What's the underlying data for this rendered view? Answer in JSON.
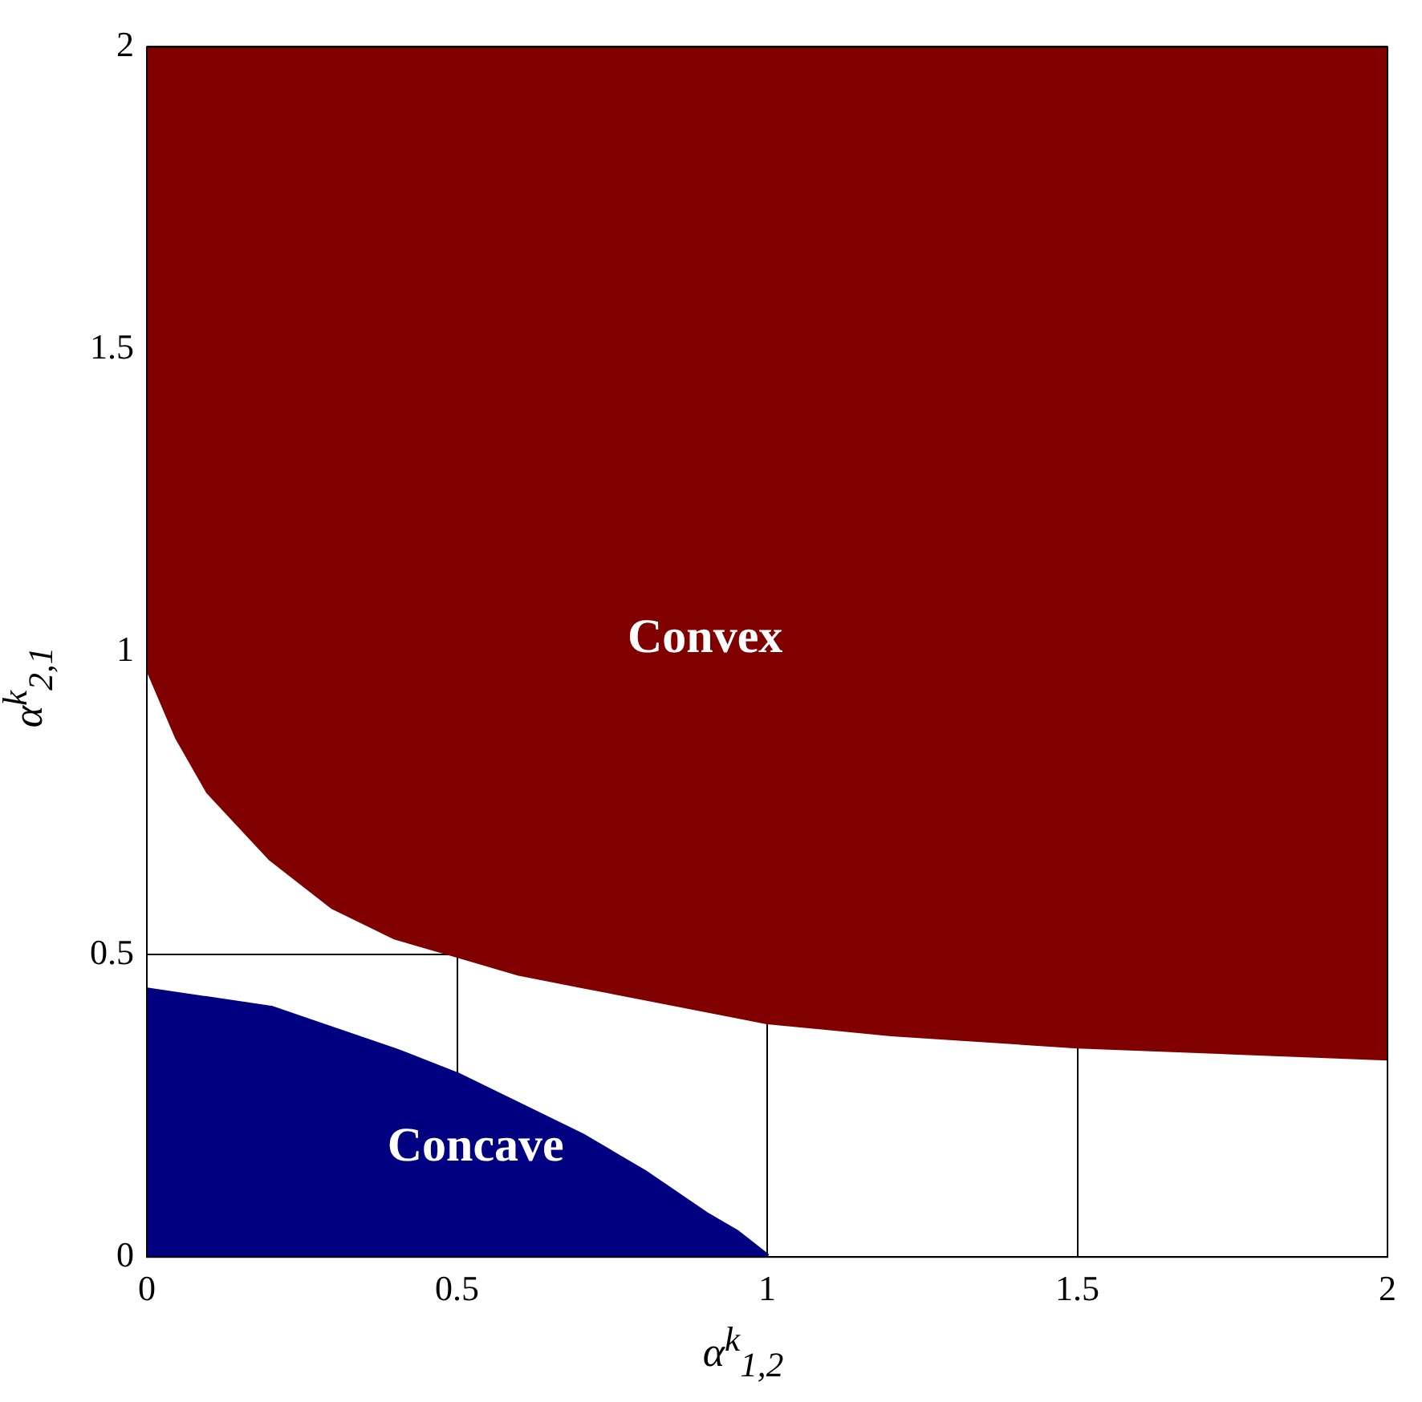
{
  "chart_data": {
    "type": "area",
    "xlabel": "α$^{k}$$_{1,2}$",
    "ylabel": "α$^{k}$$_{2,1}$",
    "xlim": [
      0,
      2
    ],
    "ylim": [
      0,
      2
    ],
    "xticks": [
      0,
      0.5,
      1,
      1.5,
      2
    ],
    "yticks": [
      0,
      0.5,
      1,
      1.5,
      2
    ],
    "grid": true,
    "series": [
      {
        "type": "line",
        "color": "#800000",
        "x": [
          0,
          0.05,
          0.1,
          0.2,
          0.3,
          0.4,
          0.5,
          0.6,
          0.7,
          0.8,
          1,
          1.2,
          1.5,
          1.75,
          2
        ],
        "values": [
          0.98,
          0.86,
          0.77,
          0.66,
          0.58,
          0.53,
          0.5,
          0.47,
          0.45,
          0.43,
          0.39,
          0.37,
          0.35,
          0.34,
          0.33
        ],
        "lower": [
          0.98,
          0.86,
          0.77,
          0.66,
          0.58,
          0.53,
          0.5,
          0.47,
          0.45,
          0.43,
          0.39,
          0.37,
          0.35,
          0.34,
          0.33
        ],
        "upper": [
          2,
          2,
          2,
          2,
          2,
          2,
          2,
          2,
          2,
          2,
          2,
          2,
          2,
          2,
          2
        ]
      },
      {
        "color": "#000080",
        "x": [
          0,
          0.2,
          0.4,
          0.5,
          0.6,
          0.7,
          0.8,
          0.9,
          0.95,
          1
        ],
        "values": [
          0.44,
          0.41,
          0.34,
          0.3,
          0.25,
          0.2,
          0.14,
          0.07,
          0.04,
          0
        ]
      }
    ],
    "annotations": [
      "Convex",
      "Concave"
    ]
  }
}
